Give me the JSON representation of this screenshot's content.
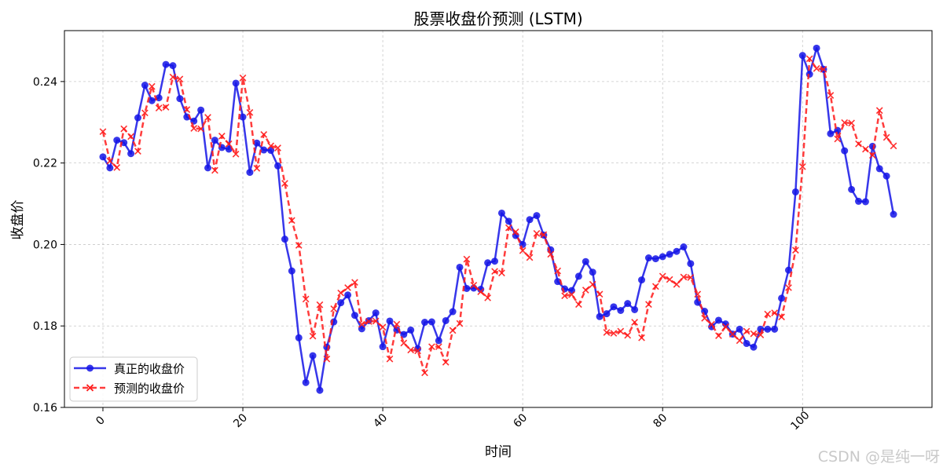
{
  "chart_data": {
    "type": "line",
    "title": "股票收盘价预测 (LSTM)",
    "xlabel": "时间",
    "ylabel": "收盘价",
    "xlim": [
      -5.5,
      118.5
    ],
    "ylim": [
      0.16,
      0.2525
    ],
    "xticks": [
      "0",
      "20",
      "40",
      "60",
      "80",
      "100"
    ],
    "yticks": [
      "0.16",
      "0.18",
      "0.20",
      "0.22",
      "0.24"
    ],
    "grid": true,
    "legend_position": "lower-left",
    "series": [
      {
        "name": "真正的收盘价",
        "color": "#1414e6",
        "style": "solid",
        "marker": "circle",
        "values": [
          0.2215,
          0.2188,
          0.2256,
          0.225,
          0.2223,
          0.2311,
          0.2391,
          0.2353,
          0.236,
          0.2442,
          0.2439,
          0.2358,
          0.2313,
          0.2303,
          0.233,
          0.2188,
          0.2256,
          0.2238,
          0.2234,
          0.2396,
          0.2313,
          0.2177,
          0.2249,
          0.2232,
          0.2231,
          0.2193,
          0.2013,
          0.1935,
          0.1771,
          0.1661,
          0.1727,
          0.1642,
          0.1748,
          0.181,
          0.1857,
          0.1876,
          0.1826,
          0.1793,
          0.1813,
          0.1832,
          0.1749,
          0.1812,
          0.179,
          0.1779,
          0.179,
          0.1744,
          0.1809,
          0.181,
          0.1764,
          0.1813,
          0.1835,
          0.1944,
          0.1892,
          0.1893,
          0.189,
          0.1955,
          0.1959,
          0.2077,
          0.2057,
          0.2022,
          0.2,
          0.2061,
          0.2071,
          0.2023,
          0.1987,
          0.1909,
          0.1891,
          0.1887,
          0.1922,
          0.1958,
          0.1932,
          0.1823,
          0.183,
          0.1847,
          0.1838,
          0.1855,
          0.184,
          0.1913,
          0.1967,
          0.1965,
          0.197,
          0.1976,
          0.1983,
          0.1994,
          0.1953,
          0.1858,
          0.1836,
          0.1798,
          0.1814,
          0.1805,
          0.178,
          0.1792,
          0.1757,
          0.1748,
          0.1792,
          0.1792,
          0.1792,
          0.1868,
          0.1937,
          0.2129,
          0.2464,
          0.2418,
          0.2482,
          0.243,
          0.2272,
          0.228,
          0.223,
          0.2135,
          0.2106,
          0.2105,
          0.2241,
          0.2186,
          0.2168,
          0.2074
        ]
      },
      {
        "name": "预测的收盘价",
        "color": "#ff1a1a",
        "style": "dashed",
        "marker": "x",
        "values": [
          0.2277,
          0.2205,
          0.2189,
          0.2284,
          0.2265,
          0.2229,
          0.2323,
          0.2388,
          0.2335,
          0.2337,
          0.2411,
          0.2406,
          0.2331,
          0.2285,
          0.2284,
          0.2312,
          0.2182,
          0.2266,
          0.2247,
          0.2222,
          0.2409,
          0.2324,
          0.2187,
          0.227,
          0.2242,
          0.2237,
          0.215,
          0.2059,
          0.1998,
          0.1866,
          0.1775,
          0.1852,
          0.1719,
          0.1842,
          0.1881,
          0.1894,
          0.1907,
          0.1804,
          0.1811,
          0.1812,
          0.1797,
          0.1719,
          0.1804,
          0.1758,
          0.1741,
          0.1739,
          0.1685,
          0.1749,
          0.1749,
          0.1711,
          0.1789,
          0.1806,
          0.1964,
          0.19,
          0.1884,
          0.1869,
          0.1934,
          0.193,
          0.2041,
          0.2031,
          0.1985,
          0.1968,
          0.2027,
          0.2024,
          0.1976,
          0.1935,
          0.1874,
          0.1877,
          0.1853,
          0.1888,
          0.1902,
          0.1878,
          0.1784,
          0.1782,
          0.1787,
          0.1777,
          0.1809,
          0.1771,
          0.1853,
          0.1897,
          0.1922,
          0.1914,
          0.1902,
          0.192,
          0.1919,
          0.1878,
          0.1819,
          0.1804,
          0.1776,
          0.1798,
          0.178,
          0.1764,
          0.1787,
          0.1781,
          0.1778,
          0.1829,
          0.1832,
          0.1822,
          0.1894,
          0.1986,
          0.2191,
          0.2456,
          0.2432,
          0.243,
          0.2366,
          0.2259,
          0.2299,
          0.2298,
          0.2247,
          0.2234,
          0.2219,
          0.2329,
          0.2263,
          0.2242
        ]
      }
    ]
  },
  "watermark": "CSDN @是纯一呀"
}
